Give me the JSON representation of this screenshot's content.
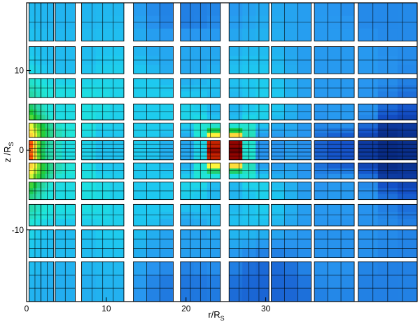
{
  "chart_data": {
    "type": "heatmap",
    "xlabel": "r/R",
    "xlabel_sub": "S",
    "ylabel": "z /R",
    "ylabel_sub": "S",
    "xlim": [
      0,
      49
    ],
    "ylim": [
      -19,
      18.5
    ],
    "x_ticks": [
      {
        "value": 0,
        "label": "0"
      },
      {
        "value": 10,
        "label": "10"
      },
      {
        "value": 20,
        "label": "20"
      },
      {
        "value": 30,
        "label": "30"
      }
    ],
    "y_ticks": [
      {
        "value": 10,
        "label": "10"
      },
      {
        "value": 0,
        "label": "0"
      },
      {
        "value": -10,
        "label": "-10"
      }
    ],
    "grid": false,
    "legend": "none",
    "colormap": [
      "#000000",
      "#8b0000",
      "#ff4500",
      "#ffd23c",
      "#ffff3c",
      "#66dd33",
      "#14c83c",
      "#28d28c",
      "#28dcb4",
      "#1ee6dc",
      "#1ec8f0",
      "#2896f0",
      "#1450c8",
      "#00145a"
    ],
    "columns": [
      {
        "x0": 0.3,
        "x1": 1.8,
        "nx": 2
      },
      {
        "x0": 1.8,
        "x1": 3.4,
        "nx": 2
      },
      {
        "x0": 3.6,
        "x1": 6.1,
        "nx": 2
      },
      {
        "x0": 6.9,
        "x1": 12.2,
        "nx": 4
      },
      {
        "x0": 13.4,
        "x1": 18.4,
        "nx": 3
      },
      {
        "x0": 19.3,
        "x1": 24.3,
        "nx": 4
      },
      {
        "x0": 25.4,
        "x1": 30.4,
        "nx": 4
      },
      {
        "x0": 30.7,
        "x1": 35.7,
        "nx": 3
      },
      {
        "x0": 36.1,
        "x1": 41.1,
        "nx": 3
      },
      {
        "x0": 41.6,
        "x1": 49,
        "nx": 4
      }
    ],
    "rows": [
      {
        "y0": -1.2,
        "y1": 1.2,
        "ny": 5
      },
      {
        "y0": 1.6,
        "y1": 3.4,
        "ny": 2
      },
      {
        "y0": -3.6,
        "y1": -1.6,
        "ny": 2
      },
      {
        "y0": 3.8,
        "y1": 5.8,
        "ny": 2
      },
      {
        "y0": -6.2,
        "y1": -4.0,
        "ny": 2
      },
      {
        "y0": 6.6,
        "y1": 9.0,
        "ny": 2
      },
      {
        "y0": -9.5,
        "y1": -6.8,
        "ny": 2
      },
      {
        "y0": 9.6,
        "y1": 13.0,
        "ny": 2
      },
      {
        "y0": -13.5,
        "y1": -10.0,
        "ny": 3
      },
      {
        "y0": 13.7,
        "y1": 18.5,
        "ny": 2
      },
      {
        "y0": -19.0,
        "y1": -14.0,
        "ny": 3
      }
    ],
    "field": [
      {
        "r": 0,
        "z": 0,
        "value": 0.0
      },
      {
        "r": 1,
        "z": 0,
        "value": 0.25
      },
      {
        "r": 2,
        "z": 0,
        "value": 0.5
      },
      {
        "r": 3,
        "z": 0,
        "value": 0.62
      },
      {
        "r": 5,
        "z": 0,
        "value": 0.72
      },
      {
        "r": 10,
        "z": 0,
        "value": 0.78
      },
      {
        "r": 20,
        "z": 0,
        "value": 0.82
      },
      {
        "r": 25,
        "z": 0,
        "value": 0.05
      },
      {
        "r": 30,
        "z": 0,
        "value": 0.85
      },
      {
        "r": 40,
        "z": 0,
        "value": 0.92
      },
      {
        "r": 45,
        "z": 0,
        "value": 0.97
      },
      {
        "r": 5,
        "z": 5,
        "value": 0.72
      },
      {
        "r": 5,
        "z": -5,
        "value": 0.72
      },
      {
        "r": 15,
        "z": 5,
        "value": 0.76
      },
      {
        "r": 15,
        "z": -5,
        "value": 0.77
      },
      {
        "r": 25,
        "z": 5,
        "value": 0.8
      },
      {
        "r": 25,
        "z": -5,
        "value": 0.8
      },
      {
        "r": 40,
        "z": 5,
        "value": 0.84
      },
      {
        "r": 40,
        "z": -5,
        "value": 0.84
      },
      {
        "r": 5,
        "z": 12,
        "value": 0.79
      },
      {
        "r": 5,
        "z": -12,
        "value": 0.79
      },
      {
        "r": 20,
        "z": 12,
        "value": 0.82
      },
      {
        "r": 20,
        "z": -12,
        "value": 0.83
      },
      {
        "r": 40,
        "z": 12,
        "value": 0.84
      },
      {
        "r": 40,
        "z": -12,
        "value": 0.85
      },
      {
        "r": 5,
        "z": 17,
        "value": 0.8
      },
      {
        "r": 5,
        "z": -17,
        "value": 0.81
      },
      {
        "r": 20,
        "z": 17,
        "value": 0.87
      },
      {
        "r": 20,
        "z": -17,
        "value": 0.88
      },
      {
        "r": 30,
        "z": -18,
        "value": 0.9
      },
      {
        "r": 45,
        "z": 17,
        "value": 0.86
      },
      {
        "r": 45,
        "z": -17,
        "value": 0.87
      }
    ]
  }
}
